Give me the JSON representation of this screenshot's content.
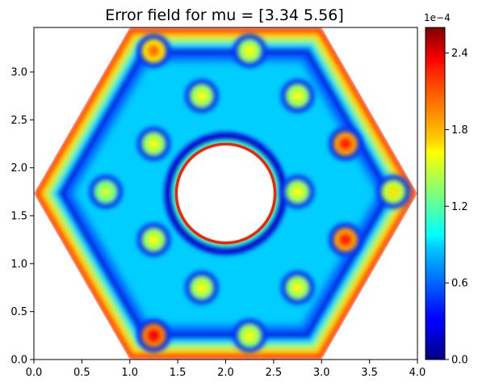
{
  "chart_data": {
    "type": "heatmap",
    "title": "Error field for mu = [3.34 5.56]",
    "xlabel": "",
    "ylabel": "",
    "xlim": [
      0.0,
      4.0
    ],
    "ylim": [
      0.0,
      3.464
    ],
    "x_ticks": [
      "0.0",
      "0.5",
      "1.0",
      "1.5",
      "2.0",
      "2.5",
      "3.0",
      "3.5",
      "4.0"
    ],
    "y_ticks": [
      "0.0",
      "0.5",
      "1.0",
      "1.5",
      "2.0",
      "2.5",
      "3.0"
    ],
    "colorbar": {
      "colormap": "jet",
      "range": [
        0.0,
        0.00026
      ],
      "multiplier_label": "1e−4",
      "tick_values": [
        0.0,
        0.6,
        1.2,
        1.8,
        2.4
      ],
      "tick_labels": [
        "0.0",
        "0.6",
        "1.2",
        "1.8",
        "2.4"
      ]
    },
    "domain": {
      "shape": "hexagon with central circular hole",
      "hexagon_vertices": [
        [
          0.0,
          1.732
        ],
        [
          1.0,
          0.0
        ],
        [
          3.0,
          0.0
        ],
        [
          4.0,
          1.732
        ],
        [
          3.0,
          3.464
        ],
        [
          1.0,
          3.464
        ]
      ],
      "hole_center": [
        2.0,
        1.732
      ],
      "hole_radius": 0.5
    },
    "hot_spots": [
      {
        "x": 1.25,
        "y": 3.22,
        "value": 0.0002
      },
      {
        "x": 2.25,
        "y": 3.22,
        "value": 0.00016
      },
      {
        "x": 1.75,
        "y": 2.75,
        "value": 0.00016
      },
      {
        "x": 2.75,
        "y": 2.75,
        "value": 0.00016
      },
      {
        "x": 1.25,
        "y": 2.25,
        "value": 0.00016
      },
      {
        "x": 3.25,
        "y": 2.25,
        "value": 0.00022
      },
      {
        "x": 0.75,
        "y": 1.75,
        "value": 0.00015
      },
      {
        "x": 2.75,
        "y": 1.75,
        "value": 0.00016
      },
      {
        "x": 3.75,
        "y": 1.75,
        "value": 0.00017
      },
      {
        "x": 1.25,
        "y": 1.25,
        "value": 0.00016
      },
      {
        "x": 3.25,
        "y": 1.25,
        "value": 0.00022
      },
      {
        "x": 1.75,
        "y": 0.75,
        "value": 0.00016
      },
      {
        "x": 2.75,
        "y": 0.75,
        "value": 0.00016
      },
      {
        "x": 1.25,
        "y": 0.25,
        "value": 0.00023
      },
      {
        "x": 2.25,
        "y": 0.25,
        "value": 0.00016
      }
    ]
  }
}
